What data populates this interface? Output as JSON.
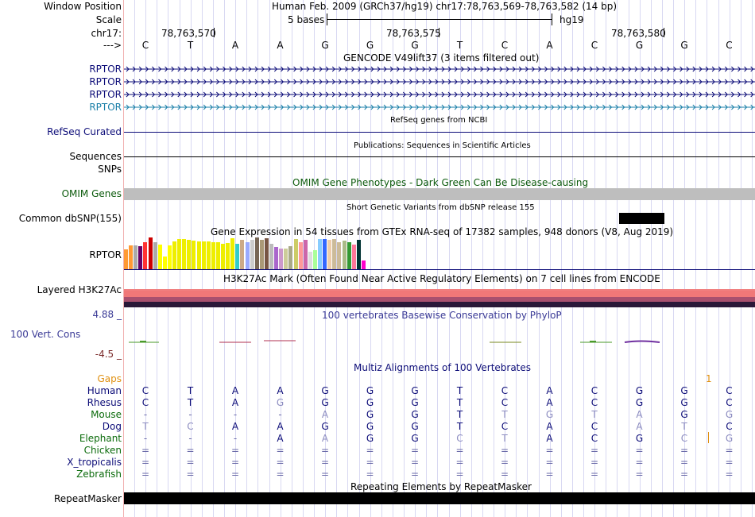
{
  "header": {
    "window_position_label": "Window Position",
    "scale_label": "Scale",
    "chrom_label": "chr17:",
    "arrow_label": "--->",
    "position_title": "Human Feb. 2009 (GRCh37/hg19)   chr17:78,763,569-78,763,582 (14 bp)",
    "scale_text": "5 bases",
    "assembly": "hg19",
    "ruler_ticks": [
      "78,763,570",
      "78,763,575",
      "78,763,580"
    ],
    "bases": [
      "C",
      "T",
      "A",
      "A",
      "G",
      "G",
      "G",
      "T",
      "C",
      "A",
      "C",
      "G",
      "G",
      "C"
    ]
  },
  "tracks": {
    "gencode": {
      "title": "GENCODE V49lift37 (3 items filtered out)",
      "labels": [
        "RPTOR",
        "RPTOR",
        "RPTOR",
        "RPTOR"
      ],
      "colors": [
        "#0c0c78",
        "#0c0c78",
        "#0c0c78",
        "#1a7fa8"
      ]
    },
    "refseq": {
      "label": "RefSeq Curated",
      "title": "RefSeq genes from NCBI"
    },
    "publications": {
      "label": "Sequences",
      "title": "Publications: Sequences in Scientific Articles"
    },
    "snps": {
      "label": "SNPs"
    },
    "omim": {
      "label": "OMIM Genes",
      "title": "OMIM Gene Phenotypes - Dark Green Can Be Disease-causing",
      "color": "#0b5a0b"
    },
    "dbsnp": {
      "label": "Common dbSNP(155)",
      "title": "Short Genetic Variants from dbSNP release 155"
    },
    "gtex": {
      "label": "RPTOR",
      "title": "Gene Expression in 54 tissues from GTEx RNA-seq of 17382 samples, 948 donors (V8, Aug 2019)",
      "bar_levels": [
        0.62,
        0.74,
        0.74,
        0.72,
        0.86,
        1.0,
        0.86,
        0.78,
        0.4,
        0.76,
        0.88,
        0.95,
        0.95,
        0.92,
        0.9,
        0.88,
        0.88,
        0.88,
        0.86,
        0.86,
        0.8,
        0.82,
        0.98,
        0.8,
        0.92,
        0.86,
        0.92,
        1.0,
        0.92,
        0.98,
        0.8,
        0.7,
        0.66,
        0.66,
        0.72,
        0.94,
        0.86,
        0.92,
        0.56,
        0.6,
        0.94,
        0.94,
        0.92,
        0.94,
        0.86,
        0.9,
        0.86,
        0.78,
        0.92,
        0.28
      ],
      "bar_colors": [
        "#ff9933",
        "#ff9933",
        "#aaaaaa",
        "#660066",
        "#ff3333",
        "#cc0000",
        "#aaaaaa",
        "#ffff00",
        "#ffff00",
        "#ffff00",
        "#eeee00",
        "#eeee00",
        "#eeee00",
        "#eeee00",
        "#eeee00",
        "#eeee00",
        "#eeee00",
        "#eeee00",
        "#eeee00",
        "#eeee00",
        "#eeee00",
        "#eeee00",
        "#eeee00",
        "#33cccc",
        "#ccaa88",
        "#99aaff",
        "#cccccc",
        "#776655",
        "#aa9977",
        "#775544",
        "#bbbbbb",
        "#aa66cc",
        "#cc99cc",
        "#cccc99",
        "#aaaa88",
        "#cccc66",
        "#ff9999",
        "#cc66aa",
        "#dddddd",
        "#aaff99",
        "#88ccff",
        "#3366ff",
        "#eeccaa",
        "#ccbb99",
        "#ccbb99",
        "#aabb88",
        "#339933",
        "#ff7799",
        "#003333",
        "#ff00cc"
      ]
    },
    "h3k27ac": {
      "label": "Layered H3K27Ac",
      "title": "H3K27Ac Mark (Often Found Near Active Regulatory Elements) on 7 cell lines from ENCODE"
    },
    "phylop": {
      "label": "100 Vert. Cons",
      "max": "4.88 _",
      "min": "-4.5 _",
      "title": "100 vertebrates Basewise Conservation by PhyloP",
      "color": "#3a3a96"
    },
    "multiz": {
      "title": "Multiz Alignments of 100 Vertebrates",
      "gaps_label": "Gaps",
      "gaps_value": "1",
      "species": [
        {
          "name": "Human",
          "color": "#0c0c78",
          "bases": [
            "C",
            "T",
            "A",
            "A",
            "G",
            "G",
            "G",
            "T",
            "C",
            "A",
            "C",
            "G",
            "G",
            "C"
          ]
        },
        {
          "name": "Rhesus",
          "color": "#0c0c78",
          "bases": [
            "C",
            "T",
            "A",
            "G",
            "G",
            "G",
            "G",
            "T",
            "C",
            "A",
            "C",
            "G",
            "G",
            "C"
          ]
        },
        {
          "name": "Mouse",
          "color": "#0b6b0b",
          "bases": [
            "-",
            "-",
            "-",
            "-",
            "A",
            "G",
            "G",
            "T",
            "T",
            "G",
            "T",
            "A",
            "G",
            "G"
          ]
        },
        {
          "name": "Dog",
          "color": "#0c0c78",
          "bases": [
            "T",
            "C",
            "A",
            "A",
            "G",
            "G",
            "G",
            "T",
            "C",
            "A",
            "C",
            "A",
            "T",
            "C"
          ]
        },
        {
          "name": "Elephant",
          "color": "#0b6b0b",
          "bases": [
            "-",
            "-",
            "-",
            "A",
            "A",
            "G",
            "G",
            "C",
            "T",
            "A",
            "C",
            "G",
            "C",
            "G"
          ]
        },
        {
          "name": "Chicken",
          "color": "#0b6b0b",
          "bases": [
            "=",
            "=",
            "=",
            "=",
            "=",
            "=",
            "=",
            "=",
            "=",
            "=",
            "=",
            "=",
            "=",
            "="
          ]
        },
        {
          "name": "X_tropicalis",
          "color": "#0c0c78",
          "bases": [
            "=",
            "=",
            "=",
            "=",
            "=",
            "=",
            "=",
            "=",
            "=",
            "=",
            "=",
            "=",
            "=",
            "="
          ]
        },
        {
          "name": "Zebrafish",
          "color": "#0b6b0b",
          "bases": [
            "=",
            "=",
            "=",
            "=",
            "=",
            "=",
            "=",
            "=",
            "=",
            "=",
            "=",
            "=",
            "=",
            "="
          ]
        }
      ]
    },
    "repeatmasker": {
      "label": "RepeatMasker",
      "title": "Repeating Elements by RepeatMasker"
    }
  }
}
